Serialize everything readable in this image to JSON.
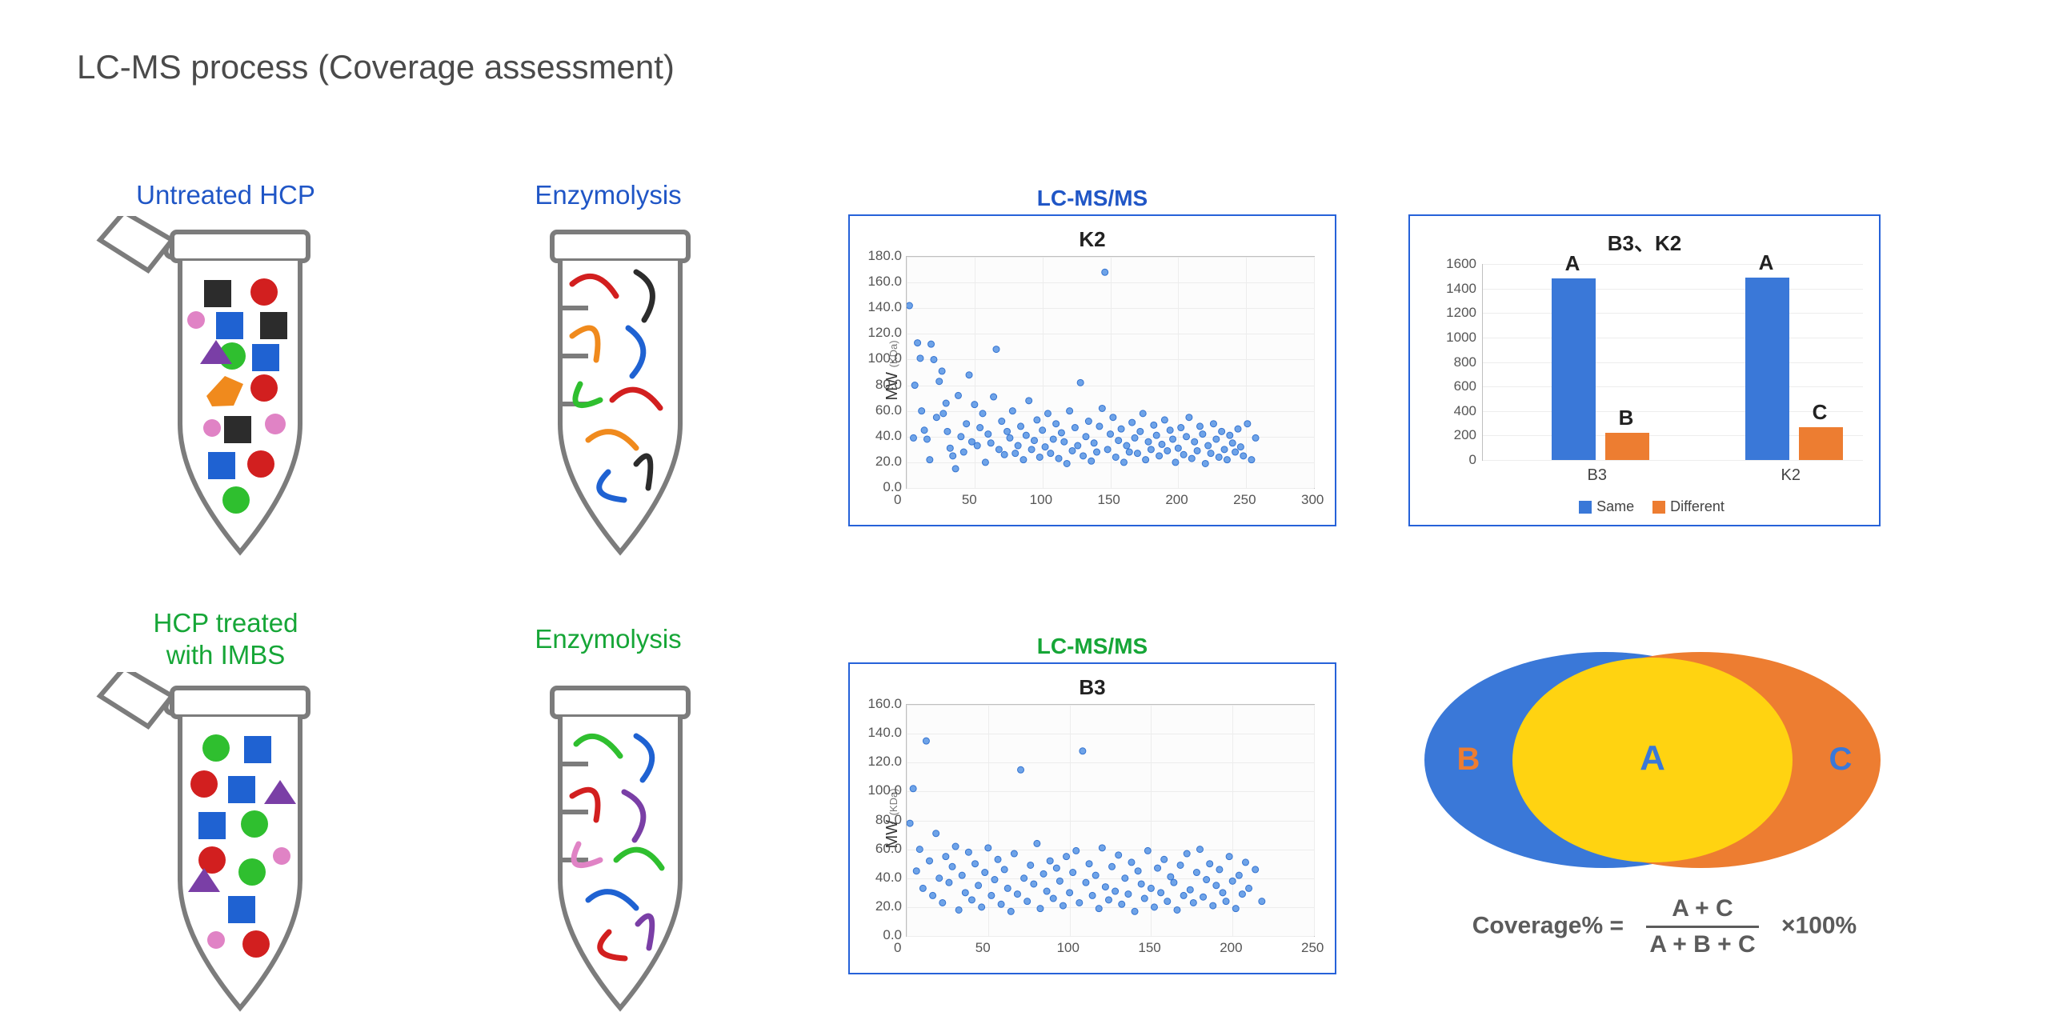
{
  "title": "LC-MS process (Coverage assessment)",
  "labels": {
    "untreated": "Untreated HCP",
    "enzymolysis_top": "Enzymolysis",
    "treated_l1": "HCP treated",
    "treated_l2": "with IMBS",
    "enzymolysis_bottom": "Enzymolysis",
    "lcms_top": "LC-MS/MS",
    "lcms_bottom": "LC-MS/MS"
  },
  "colors": {
    "frame": "#2662d9",
    "blue_text": "#2056c6",
    "green_text": "#16a637",
    "scatter_point": "#6ea3e8",
    "scatter_border": "#3574d1",
    "bar_same": "#3a78d8",
    "bar_diff": "#ed7d31",
    "venn_left": "#3a78d8",
    "venn_right": "#ed7d31",
    "venn_mid": "#ffd311",
    "background": "#ffffff"
  },
  "tube_colors": {
    "outline": "#7c7c7c",
    "red": "#d21f1f",
    "blue": "#1f62d2",
    "green": "#2fbf2f",
    "pink": "#e083c5",
    "black": "#2c2c2c",
    "purple": "#7a3fa6",
    "orange": "#f08a1d",
    "teal": "#1a9e9e"
  },
  "scatter_k2": {
    "title": "K2",
    "ylabel": "MW",
    "yunit": "(KDa)",
    "xlim": [
      0,
      300
    ],
    "ylim": [
      0,
      180
    ],
    "xtick_step": 50,
    "ytick_step": 20,
    "point_radius": 4,
    "points": [
      [
        2,
        142
      ],
      [
        5,
        39
      ],
      [
        6,
        80
      ],
      [
        8,
        113
      ],
      [
        10,
        101
      ],
      [
        11,
        60
      ],
      [
        13,
        45
      ],
      [
        15,
        38
      ],
      [
        17,
        22
      ],
      [
        18,
        112
      ],
      [
        20,
        100
      ],
      [
        22,
        55
      ],
      [
        24,
        83
      ],
      [
        26,
        91
      ],
      [
        27,
        58
      ],
      [
        29,
        66
      ],
      [
        30,
        44
      ],
      [
        32,
        31
      ],
      [
        34,
        25
      ],
      [
        36,
        15
      ],
      [
        38,
        72
      ],
      [
        40,
        40
      ],
      [
        42,
        28
      ],
      [
        44,
        50
      ],
      [
        46,
        88
      ],
      [
        48,
        36
      ],
      [
        50,
        65
      ],
      [
        52,
        33
      ],
      [
        54,
        47
      ],
      [
        56,
        58
      ],
      [
        58,
        20
      ],
      [
        60,
        42
      ],
      [
        62,
        35
      ],
      [
        64,
        71
      ],
      [
        66,
        108
      ],
      [
        68,
        30
      ],
      [
        70,
        52
      ],
      [
        72,
        26
      ],
      [
        74,
        44
      ],
      [
        76,
        39
      ],
      [
        78,
        60
      ],
      [
        80,
        27
      ],
      [
        82,
        33
      ],
      [
        84,
        48
      ],
      [
        86,
        22
      ],
      [
        88,
        41
      ],
      [
        90,
        68
      ],
      [
        92,
        30
      ],
      [
        94,
        37
      ],
      [
        96,
        53
      ],
      [
        98,
        24
      ],
      [
        100,
        45
      ],
      [
        102,
        32
      ],
      [
        104,
        58
      ],
      [
        106,
        27
      ],
      [
        108,
        38
      ],
      [
        110,
        50
      ],
      [
        112,
        23
      ],
      [
        114,
        43
      ],
      [
        116,
        36
      ],
      [
        118,
        19
      ],
      [
        120,
        60
      ],
      [
        122,
        29
      ],
      [
        124,
        47
      ],
      [
        126,
        33
      ],
      [
        128,
        82
      ],
      [
        130,
        25
      ],
      [
        132,
        40
      ],
      [
        134,
        52
      ],
      [
        136,
        21
      ],
      [
        138,
        35
      ],
      [
        140,
        28
      ],
      [
        142,
        48
      ],
      [
        144,
        62
      ],
      [
        146,
        168
      ],
      [
        148,
        30
      ],
      [
        150,
        42
      ],
      [
        152,
        55
      ],
      [
        154,
        24
      ],
      [
        156,
        37
      ],
      [
        158,
        46
      ],
      [
        160,
        20
      ],
      [
        162,
        33
      ],
      [
        164,
        28
      ],
      [
        166,
        51
      ],
      [
        168,
        39
      ],
      [
        170,
        27
      ],
      [
        172,
        44
      ],
      [
        174,
        58
      ],
      [
        176,
        22
      ],
      [
        178,
        36
      ],
      [
        180,
        30
      ],
      [
        182,
        49
      ],
      [
        184,
        41
      ],
      [
        186,
        25
      ],
      [
        188,
        34
      ],
      [
        190,
        53
      ],
      [
        192,
        29
      ],
      [
        194,
        45
      ],
      [
        196,
        38
      ],
      [
        198,
        20
      ],
      [
        200,
        31
      ],
      [
        202,
        47
      ],
      [
        204,
        26
      ],
      [
        206,
        40
      ],
      [
        208,
        55
      ],
      [
        210,
        23
      ],
      [
        212,
        36
      ],
      [
        214,
        29
      ],
      [
        216,
        48
      ],
      [
        218,
        42
      ],
      [
        220,
        19
      ],
      [
        222,
        33
      ],
      [
        224,
        27
      ],
      [
        226,
        50
      ],
      [
        228,
        38
      ],
      [
        230,
        24
      ],
      [
        232,
        44
      ],
      [
        234,
        30
      ],
      [
        236,
        22
      ],
      [
        238,
        41
      ],
      [
        240,
        35
      ],
      [
        242,
        28
      ],
      [
        244,
        46
      ],
      [
        246,
        32
      ],
      [
        248,
        25
      ],
      [
        251,
        50
      ],
      [
        254,
        22
      ],
      [
        257,
        39
      ]
    ]
  },
  "scatter_b3": {
    "title": "B3",
    "ylabel": "MW",
    "yunit": "(KDa)",
    "xlim": [
      0,
      250
    ],
    "ylim": [
      0,
      160
    ],
    "xtick_step": 50,
    "ytick_step": 20,
    "point_radius": 4,
    "points": [
      [
        2,
        78
      ],
      [
        4,
        102
      ],
      [
        6,
        45
      ],
      [
        8,
        60
      ],
      [
        10,
        33
      ],
      [
        12,
        135
      ],
      [
        14,
        52
      ],
      [
        16,
        28
      ],
      [
        18,
        71
      ],
      [
        20,
        40
      ],
      [
        22,
        23
      ],
      [
        24,
        55
      ],
      [
        26,
        37
      ],
      [
        28,
        48
      ],
      [
        30,
        62
      ],
      [
        32,
        18
      ],
      [
        34,
        42
      ],
      [
        36,
        30
      ],
      [
        38,
        58
      ],
      [
        40,
        25
      ],
      [
        42,
        50
      ],
      [
        44,
        35
      ],
      [
        46,
        20
      ],
      [
        48,
        44
      ],
      [
        50,
        61
      ],
      [
        52,
        28
      ],
      [
        54,
        39
      ],
      [
        56,
        53
      ],
      [
        58,
        22
      ],
      [
        60,
        46
      ],
      [
        62,
        33
      ],
      [
        64,
        17
      ],
      [
        66,
        57
      ],
      [
        68,
        29
      ],
      [
        70,
        115
      ],
      [
        72,
        40
      ],
      [
        74,
        24
      ],
      [
        76,
        49
      ],
      [
        78,
        36
      ],
      [
        80,
        64
      ],
      [
        82,
        19
      ],
      [
        84,
        43
      ],
      [
        86,
        31
      ],
      [
        88,
        52
      ],
      [
        90,
        26
      ],
      [
        92,
        47
      ],
      [
        94,
        38
      ],
      [
        96,
        21
      ],
      [
        98,
        55
      ],
      [
        100,
        30
      ],
      [
        102,
        44
      ],
      [
        104,
        59
      ],
      [
        106,
        23
      ],
      [
        108,
        128
      ],
      [
        110,
        37
      ],
      [
        112,
        50
      ],
      [
        114,
        28
      ],
      [
        116,
        42
      ],
      [
        118,
        19
      ],
      [
        120,
        61
      ],
      [
        122,
        34
      ],
      [
        124,
        25
      ],
      [
        126,
        48
      ],
      [
        128,
        31
      ],
      [
        130,
        56
      ],
      [
        132,
        22
      ],
      [
        134,
        40
      ],
      [
        136,
        29
      ],
      [
        138,
        51
      ],
      [
        140,
        17
      ],
      [
        142,
        45
      ],
      [
        144,
        36
      ],
      [
        146,
        26
      ],
      [
        148,
        59
      ],
      [
        150,
        33
      ],
      [
        152,
        20
      ],
      [
        154,
        47
      ],
      [
        156,
        30
      ],
      [
        158,
        53
      ],
      [
        160,
        24
      ],
      [
        162,
        41
      ],
      [
        164,
        37
      ],
      [
        166,
        18
      ],
      [
        168,
        49
      ],
      [
        170,
        28
      ],
      [
        172,
        57
      ],
      [
        174,
        32
      ],
      [
        176,
        23
      ],
      [
        178,
        44
      ],
      [
        180,
        60
      ],
      [
        182,
        27
      ],
      [
        184,
        39
      ],
      [
        186,
        50
      ],
      [
        188,
        21
      ],
      [
        190,
        35
      ],
      [
        192,
        46
      ],
      [
        194,
        30
      ],
      [
        196,
        24
      ],
      [
        198,
        55
      ],
      [
        200,
        38
      ],
      [
        202,
        19
      ],
      [
        204,
        42
      ],
      [
        206,
        29
      ],
      [
        208,
        51
      ],
      [
        210,
        33
      ],
      [
        214,
        46
      ],
      [
        218,
        24
      ]
    ]
  },
  "barchart": {
    "title": "B3、K2",
    "ylim": [
      0,
      1600
    ],
    "ytick_step": 200,
    "categories": [
      "B3",
      "K2"
    ],
    "series": [
      {
        "name": "Same",
        "values": [
          1480,
          1490
        ],
        "color": "#3a78d8"
      },
      {
        "name": "Different",
        "values": [
          220,
          265
        ],
        "color": "#ed7d31"
      }
    ],
    "labels_over_bars": [
      [
        "A",
        "B"
      ],
      [
        "A",
        "C"
      ]
    ],
    "bar_widths": 55,
    "group_gap": 120
  },
  "venn": {
    "left_label": "B",
    "mid_label": "A",
    "right_label": "C",
    "left_label_color": "#ed7d31",
    "mid_label_color": "#3a78d8",
    "right_label_color": "#3a78d8"
  },
  "formula": {
    "lhs": "Coverage% =",
    "num": "A + C",
    "den": "A + B + C",
    "rhs": "×100%"
  }
}
